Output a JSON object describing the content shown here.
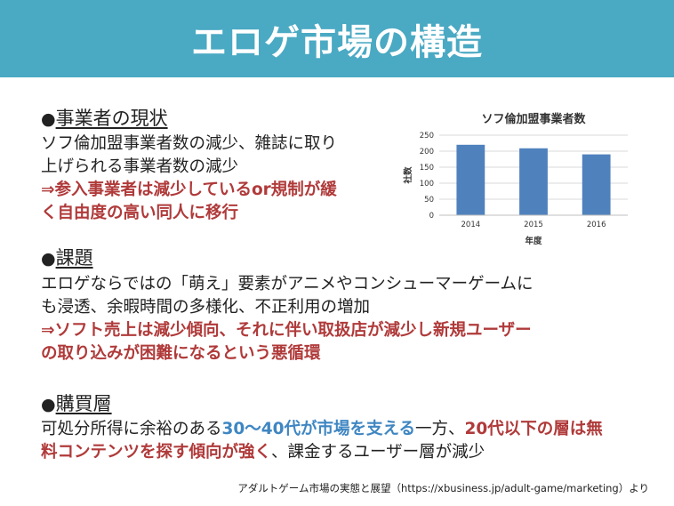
{
  "title": "エロゲ市場の構造",
  "sections": {
    "s1": {
      "bullet": "●",
      "heading": "事業者の現状",
      "line1": "ソフ倫加盟事業者数の減少、雑誌に取り",
      "line2": "上げられる事業者数の減少",
      "line3_arrow": "⇒",
      "line3": "参入事業者は減少しているor規制が緩",
      "line4": "く自由度の高い同人に移行"
    },
    "s2": {
      "bullet": "●",
      "heading": "課題",
      "line1": "エロゲならではの「萌え」要素がアニメやコンシューマーゲームに",
      "line2": "も浸透、余暇時間の多様化、不正利用の増加",
      "line3_arrow": "⇒",
      "line3": "ソフト売上は減少傾向、それに伴い取扱店が減少し新規ユーザー",
      "line4": "の取り込みが困難になるという悪循環"
    },
    "s3": {
      "bullet": "●",
      "heading": "購買層",
      "l1_a": "可処分所得に余裕のある",
      "l1_b": "30～40代が市場を支える",
      "l1_c": "一方、",
      "l1_d": "20代以下の層は無",
      "l2_a": "料コンテンツを探す傾向が強く",
      "l2_b": "、課金するユーザー層が減少"
    }
  },
  "source": "アダルトゲーム市場の実態と展望（https://xbusiness.jp/adult-game/marketing）より",
  "colors": {
    "banner": "#4aa9c3",
    "emphasis_red": "#b03a3a",
    "emphasis_blue": "#3f86c2",
    "bar": "#4f81bd"
  },
  "chart_data": {
    "type": "bar",
    "title": "ソフ倫加盟事業者数",
    "xlabel": "年度",
    "ylabel": "社数",
    "categories": [
      "2014",
      "2015",
      "2016"
    ],
    "values": [
      220,
      209,
      190
    ],
    "ylim": [
      0,
      250
    ],
    "yticks": [
      "0",
      "50",
      "100",
      "150",
      "200",
      "250"
    ],
    "grid": true,
    "legend": "none"
  }
}
